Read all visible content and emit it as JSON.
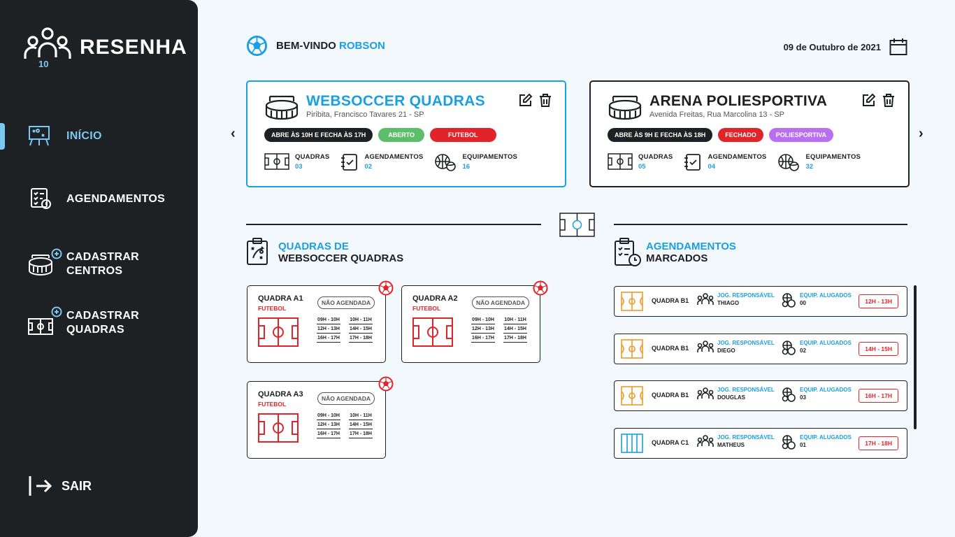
{
  "app": {
    "name": "RESENHA",
    "logo_badge": "10"
  },
  "sidebar": {
    "items": [
      {
        "label": "INÍCIO",
        "icon": "whiteboard-icon",
        "active": true
      },
      {
        "label": "AGENDAMENTOS",
        "icon": "checklist-clock-icon"
      },
      {
        "label": "CADASTRAR CENTROS",
        "icon": "stadium-add-icon"
      },
      {
        "label": "CADASTRAR QUADRAS",
        "icon": "field-add-icon"
      }
    ],
    "logout_label": "SAIR"
  },
  "header": {
    "welcome_prefix": "BEM-VINDO",
    "user_name": "ROBSON",
    "date": "09 de Outubro de 2021"
  },
  "centers": [
    {
      "name": "WEBSOCCER QUADRAS",
      "address": "Piribita, Francisco Tavares 21 - SP",
      "hours": "ABRE ÀS 10H E FECHA ÀS 17H",
      "status": "ABERTO",
      "sport": "FUTEBOL",
      "stats": [
        {
          "label": "QUADRAS",
          "value": "03"
        },
        {
          "label": "AGENDAMENTOS",
          "value": "02"
        },
        {
          "label": "EQUIPAMENTOS",
          "value": "16"
        }
      ]
    },
    {
      "name": "ARENA POLIESPORTIVA",
      "address": "Avenida Freitas, Rua Marcolina 13 - SP",
      "hours": "ABRE ÀS 9H E FECHA ÀS 18H",
      "status": "FECHADO",
      "sport": "POLIESPORTIVA",
      "stats": [
        {
          "label": "QUADRAS",
          "value": "05"
        },
        {
          "label": "AGENDAMENTOS",
          "value": "04"
        },
        {
          "label": "EQUIPAMENTOS",
          "value": "32"
        }
      ]
    }
  ],
  "courts_section": {
    "title_line1": "QUADRAS DE",
    "title_line2": "WEBSOCCER QUADRAS"
  },
  "courts": [
    {
      "name": "QUADRA A1",
      "type": "FUTEBOL",
      "badge": "NÃO AGENDADA",
      "slots": [
        "09H - 10H",
        "10H - 11H",
        "12H - 13H",
        "14H - 15H",
        "16H - 17H",
        "17H - 18H"
      ]
    },
    {
      "name": "QUADRA A2",
      "type": "FUTEBOL",
      "badge": "NÃO AGENDADA",
      "slots": [
        "09H - 10H",
        "10H - 11H",
        "12H - 13H",
        "14H - 15H",
        "16H - 17H",
        "17H - 18H"
      ]
    },
    {
      "name": "QUADRA A3",
      "type": "FUTEBOL",
      "badge": "NÃO AGENDADA",
      "slots": [
        "09H - 10H",
        "10H - 11H",
        "12H - 13H",
        "14H - 15H",
        "16H - 17H",
        "17H - 18H"
      ]
    }
  ],
  "bookings_section": {
    "title_line1": "AGENDAMENTOS",
    "title_line2": "MARCADOS"
  },
  "booking_labels": {
    "player": "JOG. RESPONSÁVEL",
    "equipment": "EQUIP. ALUGADOS"
  },
  "bookings": [
    {
      "court": "QUADRA B1",
      "player": "THIAGO",
      "equipment": "00",
      "time": "12H - 13H",
      "field_color": "#f09a2a"
    },
    {
      "court": "QUADRA B1",
      "player": "DIEGO",
      "equipment": "02",
      "time": "14H - 15H",
      "field_color": "#f09a2a"
    },
    {
      "court": "QUADRA B1",
      "player": "DOUGLAS",
      "equipment": "03",
      "time": "16H - 17H",
      "field_color": "#f09a2a"
    },
    {
      "court": "QUADRA C1",
      "player": "MATHEUS",
      "equipment": "01",
      "time": "17H - 18H",
      "field_color": "#1a9fe3"
    }
  ],
  "colors": {
    "accent": "#1a9fe3",
    "dark": "#1e2124",
    "red": "#e0242a",
    "green": "#5cbd6a",
    "purple": "#b86ff0"
  }
}
